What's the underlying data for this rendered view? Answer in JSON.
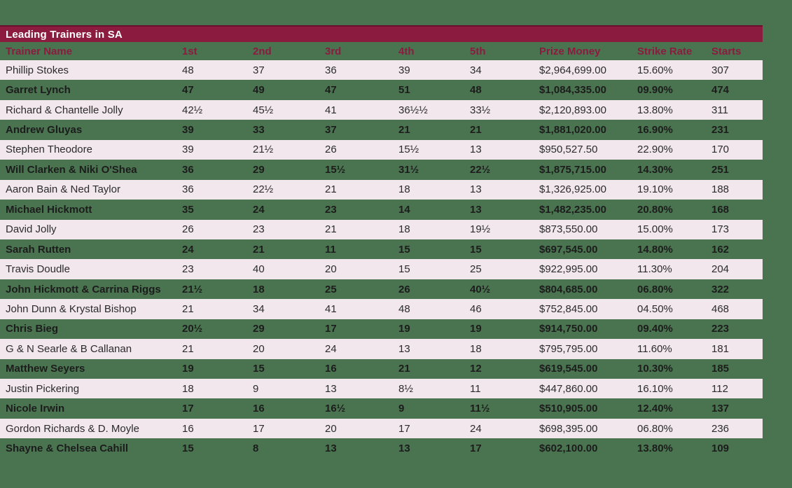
{
  "chart_data": {
    "type": "table",
    "title": "Leading Trainers in SA",
    "columns": [
      "Trainer Name",
      "1st",
      "2nd",
      "3rd",
      "4th",
      "5th",
      "Prize Money",
      "Strike Rate",
      "Starts"
    ],
    "rows": [
      [
        "Phillip Stokes",
        "48",
        "37",
        "36",
        "39",
        "34",
        "$2,964,699.00",
        "15.60%",
        "307"
      ],
      [
        "Garret Lynch",
        "47",
        "49",
        "47",
        "51",
        "48",
        "$1,084,335.00",
        "09.90%",
        "474"
      ],
      [
        "Richard & Chantelle Jolly",
        "42½",
        "45½",
        "41",
        "36½½",
        "33½",
        "$2,120,893.00",
        "13.80%",
        "311"
      ],
      [
        "Andrew Gluyas",
        "39",
        "33",
        "37",
        "21",
        "21",
        "$1,881,020.00",
        "16.90%",
        "231"
      ],
      [
        "Stephen Theodore",
        "39",
        "21½",
        "26",
        "15½",
        "13",
        "$950,527.50",
        "22.90%",
        "170"
      ],
      [
        "Will Clarken & Niki O'Shea",
        "36",
        "29",
        "15½",
        "31½",
        "22½",
        "$1,875,715.00",
        "14.30%",
        "251"
      ],
      [
        "Aaron Bain & Ned Taylor",
        "36",
        "22½",
        "21",
        "18",
        "13",
        "$1,326,925.00",
        "19.10%",
        "188"
      ],
      [
        "Michael Hickmott",
        "35",
        "24",
        "23",
        "14",
        "13",
        "$1,482,235.00",
        "20.80%",
        "168"
      ],
      [
        "David Jolly",
        "26",
        "23",
        "21",
        "18",
        "19½",
        "$873,550.00",
        "15.00%",
        "173"
      ],
      [
        "Sarah Rutten",
        "24",
        "21",
        "11",
        "15",
        "15",
        "$697,545.00",
        "14.80%",
        "162"
      ],
      [
        "Travis Doudle",
        "23",
        "40",
        "20",
        "15",
        "25",
        "$922,995.00",
        "11.30%",
        "204"
      ],
      [
        "John Hickmott & Carrina Riggs",
        "21½",
        "18",
        "25",
        "26",
        "40½",
        "$804,685.00",
        "06.80%",
        "322"
      ],
      [
        "John Dunn & Krystal Bishop",
        "21",
        "34",
        "41",
        "48",
        "46",
        "$752,845.00",
        "04.50%",
        "468"
      ],
      [
        "Chris Bieg",
        "20½",
        "29",
        "17",
        "19",
        "19",
        "$914,750.00",
        "09.40%",
        "223"
      ],
      [
        "G & N Searle & B Callanan",
        "21",
        "20",
        "24",
        "13",
        "18",
        "$795,795.00",
        "11.60%",
        "181"
      ],
      [
        "Matthew Seyers",
        "19",
        "15",
        "16",
        "21",
        "12",
        "$619,545.00",
        "10.30%",
        "185"
      ],
      [
        "Justin Pickering",
        "18",
        "9",
        "13",
        "8½",
        "11",
        "$447,860.00",
        "16.10%",
        "112"
      ],
      [
        "Nicole Irwin",
        "17",
        "16",
        "16½",
        "9",
        "11½",
        "$510,905.00",
        "12.40%",
        "137"
      ],
      [
        "Gordon Richards & D. Moyle",
        "16",
        "17",
        "20",
        "17",
        "24",
        "$698,395.00",
        "06.80%",
        "236"
      ],
      [
        "Shayne & Chelsea Cahill",
        "15",
        "8",
        "13",
        "13",
        "17",
        "$602,100.00",
        "13.80%",
        "109"
      ]
    ]
  },
  "colors": {
    "background_green": "#4A7450",
    "title_bar_maroon": "#8C1B40",
    "title_bar_top_edge": "#69102F",
    "header_text_maroon": "#8C1B40",
    "row_light_pink": "#F2E7EC",
    "row_text_dark": "#1C1C1C",
    "title_text_white": "#FFFFFF"
  }
}
